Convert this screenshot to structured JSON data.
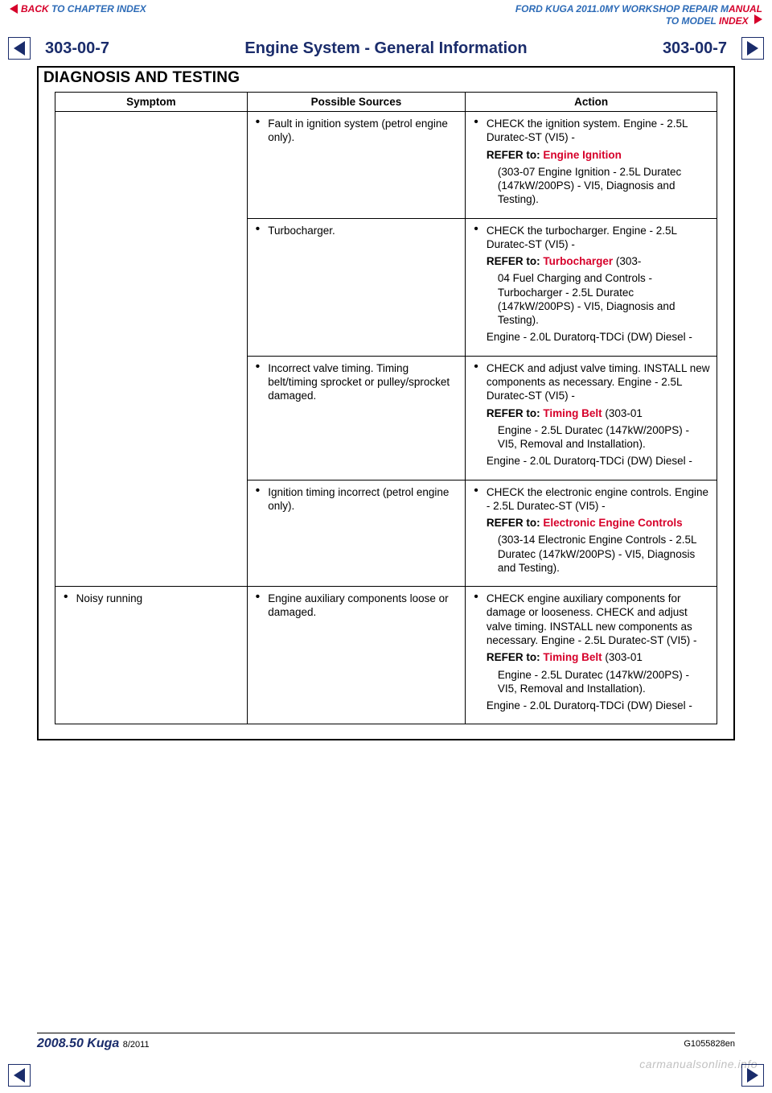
{
  "nav": {
    "back_label": "BACK",
    "chapter_index": " TO CHAPTER INDEX",
    "manual_title_prefix": "FORD KUGA 2011.0MY WORKSHOP REPAIR M",
    "manual_title_suffix": "ANUAL",
    "to_model": "TO MODEL ",
    "index_label": "INDEX"
  },
  "header": {
    "page_left": "303-00-7",
    "title": "Engine System - General Information",
    "page_right": "303-00-7"
  },
  "section_heading": "DIAGNOSIS AND TESTING",
  "table": {
    "headers": {
      "c1": "Symptom",
      "c2": "Possible Sources",
      "c3": "Action"
    },
    "rows": [
      {
        "symptom": "",
        "source": "Fault in ignition system (petrol engine only).",
        "action_intro": "CHECK the ignition system. Engine - 2.5L Duratec-ST (VI5) -",
        "refer_label": "REFER to:",
        "refer_link": "Engine Ignition",
        "refer_tail": "(303-07 Engine Ignition - 2.5L Duratec (147kW/200PS) - VI5, Diagnosis and Testing)."
      },
      {
        "symptom": "",
        "source": "Turbocharger.",
        "action_intro": "CHECK the turbocharger. Engine - 2.5L Duratec-ST (VI5) -",
        "refer_label": "REFER to:",
        "refer_link": "Turbocharger",
        "refer_tail": "(303-04 Fuel Charging and Controls - Turbocharger - 2.5L Duratec (147kW/200PS) - VI5, Diagnosis and Testing).",
        "extra": "Engine - 2.0L Duratorq-TDCi (DW) Diesel -"
      },
      {
        "symptom": "",
        "source": "Incorrect valve timing. Timing belt/timing sprocket or pulley/sprocket damaged.",
        "action_intro": "CHECK and adjust valve timing. INSTALL new components as necessary. Engine - 2.5L Duratec-ST (VI5) -",
        "refer_label": "REFER to:",
        "refer_link": "Timing Belt",
        "refer_tail": "(303-01 Engine - 2.5L Duratec (147kW/200PS) - VI5, Removal and Installation).",
        "extra": "Engine - 2.0L Duratorq-TDCi (DW) Diesel -"
      },
      {
        "symptom": "",
        "source": "Ignition timing incorrect (petrol engine only).",
        "action_intro": "CHECK the electronic engine controls. Engine - 2.5L Duratec-ST (VI5) -",
        "refer_label": "REFER to:",
        "refer_link": "Electronic Engine Controls",
        "refer_tail": "(303-14 Electronic Engine Controls - 2.5L Duratec (147kW/200PS) - VI5, Diagnosis and Testing)."
      },
      {
        "symptom": "Noisy running",
        "source": "Engine auxiliary components loose or damaged.",
        "action_intro": "CHECK engine auxiliary components for damage or looseness. CHECK and adjust valve timing. INSTALL new components as necessary. Engine - 2.5L Duratec-ST (VI5) -",
        "refer_label": "REFER to:",
        "refer_link": "Timing Belt",
        "refer_tail": "(303-01 Engine - 2.5L Duratec (147kW/200PS) - VI5, Removal and Installation).",
        "extra": "Engine - 2.0L Duratorq-TDCi (DW) Diesel -"
      }
    ]
  },
  "footer": {
    "model": "2008.50 Kuga",
    "rev": "8/2011",
    "code": "G1055828en"
  },
  "watermark": "carmanualsonline.info",
  "colors": {
    "blue": "#1a2c6b",
    "red": "#d6002a",
    "link_blue": "#2d6bb7"
  }
}
